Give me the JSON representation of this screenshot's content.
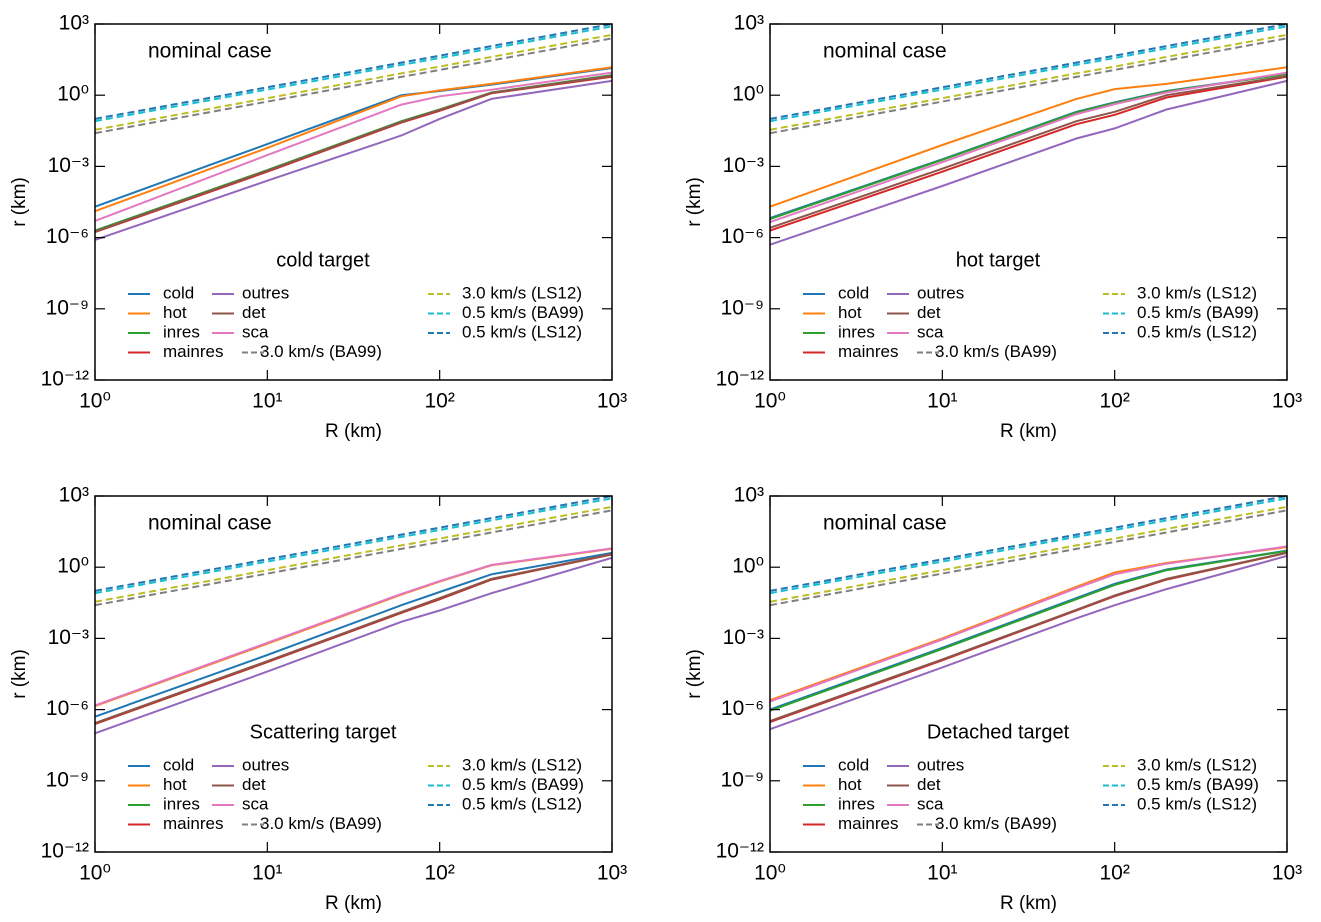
{
  "chart_data": [
    {
      "type": "line",
      "annotation": "nominal case",
      "legend_title": "cold target",
      "xlabel": "R (km)",
      "ylabel": "r (km)",
      "xscale": "log",
      "yscale": "log",
      "xlim": [
        1,
        1000
      ],
      "ylim": [
        1e-12,
        1000
      ],
      "xticks": [
        {
          "value": 1,
          "label": "10⁰"
        },
        {
          "value": 10,
          "label": "10¹"
        },
        {
          "value": 100,
          "label": "10²"
        },
        {
          "value": 1000,
          "label": "10³"
        }
      ],
      "yticks": [
        {
          "value": 1e-12,
          "label": "10⁻¹²"
        },
        {
          "value": 1e-09,
          "label": "10⁻⁹"
        },
        {
          "value": 1e-06,
          "label": "10⁻⁶"
        },
        {
          "value": 0.001,
          "label": "10⁻³"
        },
        {
          "value": 1,
          "label": "10⁰"
        },
        {
          "value": 1000,
          "label": "10³"
        }
      ],
      "x": [
        1,
        10,
        60,
        100,
        200,
        1000
      ],
      "series": [
        {
          "name": "cold",
          "color": "#1f77b4",
          "dash": false,
          "values": [
            2e-05,
            0.0087,
            1.0,
            1.5,
            2.8,
            14
          ]
        },
        {
          "name": "hot",
          "color": "#ff7f0e",
          "dash": false,
          "values": [
            1.3e-05,
            0.006,
            0.9,
            1.6,
            3,
            15
          ]
        },
        {
          "name": "inres",
          "color": "#2ca02c",
          "dash": false,
          "values": [
            2e-06,
            0.0007,
            0.08,
            0.25,
            1.3,
            7
          ]
        },
        {
          "name": "mainres",
          "color": "#d62728",
          "dash": false,
          "values": [
            1.7e-06,
            0.0006,
            0.07,
            0.22,
            1.2,
            6
          ]
        },
        {
          "name": "outres",
          "color": "#9467bd",
          "dash": false,
          "values": [
            8e-07,
            0.00025,
            0.02,
            0.1,
            0.7,
            4
          ]
        },
        {
          "name": "det",
          "color": "#8c564b",
          "dash": false,
          "values": [
            1.8e-06,
            0.00065,
            0.075,
            0.24,
            1.25,
            6.5
          ]
        },
        {
          "name": "sca",
          "color": "#e377c2",
          "dash": false,
          "values": [
            5e-06,
            0.003,
            0.4,
            0.9,
            1.7,
            9
          ]
        },
        {
          "name": "3.0 km/s (BA99)",
          "color": "#7f7f7f",
          "dash": true,
          "values": [
            0.025,
            0.54,
            5.9,
            11.6,
            29,
            250
          ]
        },
        {
          "name": "3.0 km/s (LS12)",
          "color": "#bcbd22",
          "dash": true,
          "values": [
            0.035,
            0.75,
            8.3,
            16,
            41,
            350
          ]
        },
        {
          "name": "0.5 km/s (BA99)",
          "color": "#17becf",
          "dash": true,
          "values": [
            0.08,
            1.72,
            18.9,
            37,
            94,
            800
          ]
        },
        {
          "name": "0.5 km/s (LS12)",
          "color": "#1f77b4",
          "dash": true,
          "values": [
            0.1,
            2.15,
            23.6,
            46,
            117,
            1000
          ]
        }
      ]
    },
    {
      "type": "line",
      "annotation": "nominal case",
      "legend_title": "hot target",
      "xlabel": "R (km)",
      "ylabel": "r (km)",
      "xscale": "log",
      "yscale": "log",
      "xlim": [
        1,
        1000
      ],
      "ylim": [
        1e-12,
        1000
      ],
      "xticks": [
        {
          "value": 1,
          "label": "10⁰"
        },
        {
          "value": 10,
          "label": "10¹"
        },
        {
          "value": 100,
          "label": "10²"
        },
        {
          "value": 1000,
          "label": "10³"
        }
      ],
      "yticks": [
        {
          "value": 1e-12,
          "label": "10⁻¹²"
        },
        {
          "value": 1e-09,
          "label": "10⁻⁹"
        },
        {
          "value": 1e-06,
          "label": "10⁻⁶"
        },
        {
          "value": 0.001,
          "label": "10⁻³"
        },
        {
          "value": 1,
          "label": "10⁰"
        },
        {
          "value": 1000,
          "label": "10³"
        }
      ],
      "x": [
        1,
        10,
        60,
        100,
        200,
        1000
      ],
      "series": [
        {
          "name": "cold",
          "color": "#1f77b4",
          "dash": false,
          "values": [
            6.6e-06,
            0.002,
            0.2,
            0.5,
            1.5,
            8
          ]
        },
        {
          "name": "hot",
          "color": "#ff7f0e",
          "dash": false,
          "values": [
            2e-05,
            0.008,
            0.7,
            1.8,
            3,
            15
          ]
        },
        {
          "name": "inres",
          "color": "#2ca02c",
          "dash": false,
          "values": [
            6e-06,
            0.0019,
            0.19,
            0.48,
            1.45,
            7.8
          ]
        },
        {
          "name": "mainres",
          "color": "#d62728",
          "dash": false,
          "values": [
            2e-06,
            0.0006,
            0.06,
            0.15,
            0.8,
            6
          ]
        },
        {
          "name": "outres",
          "color": "#9467bd",
          "dash": false,
          "values": [
            5e-07,
            0.00015,
            0.015,
            0.04,
            0.25,
            4
          ]
        },
        {
          "name": "det",
          "color": "#8c564b",
          "dash": false,
          "values": [
            2.6e-06,
            0.0008,
            0.08,
            0.2,
            1.0,
            6.5
          ]
        },
        {
          "name": "sca",
          "color": "#e377c2",
          "dash": false,
          "values": [
            4.5e-06,
            0.0015,
            0.16,
            0.42,
            1.3,
            9
          ]
        },
        {
          "name": "3.0 km/s (BA99)",
          "color": "#7f7f7f",
          "dash": true,
          "values": [
            0.025,
            0.54,
            5.9,
            11.6,
            29,
            250
          ]
        },
        {
          "name": "3.0 km/s (LS12)",
          "color": "#bcbd22",
          "dash": true,
          "values": [
            0.035,
            0.75,
            8.3,
            16,
            41,
            350
          ]
        },
        {
          "name": "0.5 km/s (BA99)",
          "color": "#17becf",
          "dash": true,
          "values": [
            0.08,
            1.72,
            18.9,
            37,
            94,
            800
          ]
        },
        {
          "name": "0.5 km/s (LS12)",
          "color": "#1f77b4",
          "dash": true,
          "values": [
            0.1,
            2.15,
            23.6,
            46,
            117,
            1000
          ]
        }
      ]
    },
    {
      "type": "line",
      "annotation": "nominal case",
      "legend_title": "Scattering target",
      "xlabel": "R (km)",
      "ylabel": "r (km)",
      "xscale": "log",
      "yscale": "log",
      "xlim": [
        1,
        1000
      ],
      "ylim": [
        1e-12,
        1000
      ],
      "xticks": [
        {
          "value": 1,
          "label": "10⁰"
        },
        {
          "value": 10,
          "label": "10¹"
        },
        {
          "value": 100,
          "label": "10²"
        },
        {
          "value": 1000,
          "label": "10³"
        }
      ],
      "yticks": [
        {
          "value": 1e-12,
          "label": "10⁻¹²"
        },
        {
          "value": 1e-09,
          "label": "10⁻⁹"
        },
        {
          "value": 1e-06,
          "label": "10⁻⁶"
        },
        {
          "value": 0.001,
          "label": "10⁻³"
        },
        {
          "value": 1,
          "label": "10⁰"
        },
        {
          "value": 1000,
          "label": "10³"
        }
      ],
      "x": [
        1,
        10,
        60,
        100,
        200,
        1000
      ],
      "series": [
        {
          "name": "cold",
          "color": "#1f77b4",
          "dash": false,
          "values": [
            5e-07,
            0.0002,
            0.025,
            0.09,
            0.5,
            4
          ]
        },
        {
          "name": "hot",
          "color": "#ff7f0e",
          "dash": false,
          "values": [
            1.4e-06,
            0.0006,
            0.07,
            0.25,
            1.2,
            6
          ]
        },
        {
          "name": "inres",
          "color": "#2ca02c",
          "dash": false,
          "values": [
            2.5e-07,
            0.0001,
            0.012,
            0.045,
            0.3,
            3.5
          ]
        },
        {
          "name": "mainres",
          "color": "#d62728",
          "dash": false,
          "values": [
            2.5e-07,
            0.0001,
            0.012,
            0.045,
            0.3,
            3.5
          ]
        },
        {
          "name": "outres",
          "color": "#9467bd",
          "dash": false,
          "values": [
            1e-07,
            4e-05,
            0.005,
            0.015,
            0.08,
            2.5
          ]
        },
        {
          "name": "det",
          "color": "#8c564b",
          "dash": false,
          "values": [
            2.7e-07,
            0.00011,
            0.013,
            0.05,
            0.32,
            3.6
          ]
        },
        {
          "name": "sca",
          "color": "#e377c2",
          "dash": false,
          "values": [
            1.5e-06,
            0.00065,
            0.075,
            0.26,
            1.25,
            6.2
          ]
        },
        {
          "name": "3.0 km/s (BA99)",
          "color": "#7f7f7f",
          "dash": true,
          "values": [
            0.025,
            0.54,
            5.9,
            11.6,
            29,
            250
          ]
        },
        {
          "name": "3.0 km/s (LS12)",
          "color": "#bcbd22",
          "dash": true,
          "values": [
            0.035,
            0.75,
            8.3,
            16,
            41,
            350
          ]
        },
        {
          "name": "0.5 km/s (BA99)",
          "color": "#17becf",
          "dash": true,
          "values": [
            0.08,
            1.72,
            18.9,
            37,
            94,
            800
          ]
        },
        {
          "name": "0.5 km/s (LS12)",
          "color": "#1f77b4",
          "dash": true,
          "values": [
            0.1,
            2.15,
            23.6,
            46,
            117,
            1000
          ]
        }
      ]
    },
    {
      "type": "line",
      "annotation": "nominal case",
      "legend_title": "Detached target",
      "xlabel": "R (km)",
      "ylabel": "r (km)",
      "xscale": "log",
      "yscale": "log",
      "xlim": [
        1,
        1000
      ],
      "ylim": [
        1e-12,
        1000
      ],
      "xticks": [
        {
          "value": 1,
          "label": "10⁰"
        },
        {
          "value": 10,
          "label": "10¹"
        },
        {
          "value": 100,
          "label": "10²"
        },
        {
          "value": 1000,
          "label": "10³"
        }
      ],
      "yticks": [
        {
          "value": 1e-12,
          "label": "10⁻¹²"
        },
        {
          "value": 1e-09,
          "label": "10⁻⁹"
        },
        {
          "value": 1e-06,
          "label": "10⁻⁶"
        },
        {
          "value": 0.001,
          "label": "10⁻³"
        },
        {
          "value": 1,
          "label": "10⁰"
        },
        {
          "value": 1000,
          "label": "10³"
        }
      ],
      "x": [
        1,
        10,
        60,
        100,
        200,
        1000
      ],
      "series": [
        {
          "name": "cold",
          "color": "#1f77b4",
          "dash": false,
          "values": [
            1e-06,
            0.0004,
            0.05,
            0.2,
            0.8,
            5
          ]
        },
        {
          "name": "hot",
          "color": "#ff7f0e",
          "dash": false,
          "values": [
            2.5e-06,
            0.001,
            0.15,
            0.6,
            1.5,
            7
          ]
        },
        {
          "name": "inres",
          "color": "#2ca02c",
          "dash": false,
          "values": [
            9e-07,
            0.00036,
            0.045,
            0.18,
            0.75,
            4.8
          ]
        },
        {
          "name": "mainres",
          "color": "#d62728",
          "dash": false,
          "values": [
            3e-07,
            0.00012,
            0.015,
            0.06,
            0.3,
            4
          ]
        },
        {
          "name": "outres",
          "color": "#9467bd",
          "dash": false,
          "values": [
            1.5e-07,
            6e-05,
            0.007,
            0.025,
            0.12,
            3
          ]
        },
        {
          "name": "det",
          "color": "#8c564b",
          "dash": false,
          "values": [
            3.3e-07,
            0.00013,
            0.016,
            0.065,
            0.32,
            4.1
          ]
        },
        {
          "name": "sca",
          "color": "#e377c2",
          "dash": false,
          "values": [
            2.2e-06,
            0.0009,
            0.13,
            0.5,
            1.4,
            7.5
          ]
        },
        {
          "name": "3.0 km/s (BA99)",
          "color": "#7f7f7f",
          "dash": true,
          "values": [
            0.025,
            0.54,
            5.9,
            11.6,
            29,
            250
          ]
        },
        {
          "name": "3.0 km/s (LS12)",
          "color": "#bcbd22",
          "dash": true,
          "values": [
            0.035,
            0.75,
            8.3,
            16,
            41,
            350
          ]
        },
        {
          "name": "0.5 km/s (BA99)",
          "color": "#17becf",
          "dash": true,
          "values": [
            0.08,
            1.72,
            18.9,
            37,
            94,
            800
          ]
        },
        {
          "name": "0.5 km/s (LS12)",
          "color": "#1f77b4",
          "dash": true,
          "values": [
            0.1,
            2.15,
            23.6,
            46,
            117,
            1000
          ]
        }
      ]
    }
  ]
}
